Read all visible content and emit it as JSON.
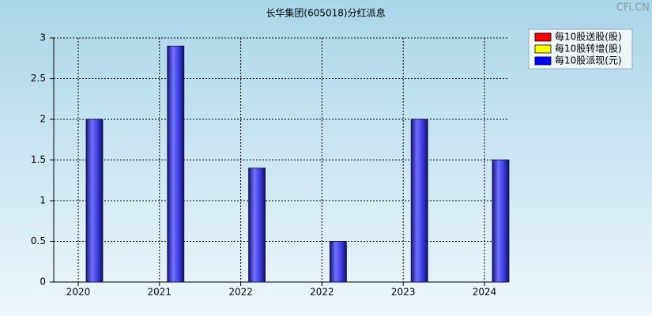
{
  "chart_data": {
    "type": "bar",
    "title": "长华集团(605018)分红派息",
    "watermark": "CFi.CN",
    "categories": [
      "2020",
      "2021",
      "2022",
      "2022",
      "2023",
      "2024"
    ],
    "series": [
      {
        "name": "每10股送股(股)",
        "color": "#ff0000",
        "values": [
          null,
          null,
          null,
          null,
          null,
          null
        ]
      },
      {
        "name": "每10股转增(股)",
        "color": "#ffff00",
        "values": [
          null,
          null,
          null,
          null,
          null,
          null
        ]
      },
      {
        "name": "每10股派现(元)",
        "color": "#0000ff",
        "values": [
          2,
          2.9,
          1.4,
          0.5,
          2,
          1.5
        ]
      }
    ],
    "ylim": [
      0,
      3
    ],
    "yticks": [
      0,
      0.5,
      1,
      1.5,
      2,
      2.5,
      3
    ],
    "grid": true,
    "legend": "upper right"
  }
}
